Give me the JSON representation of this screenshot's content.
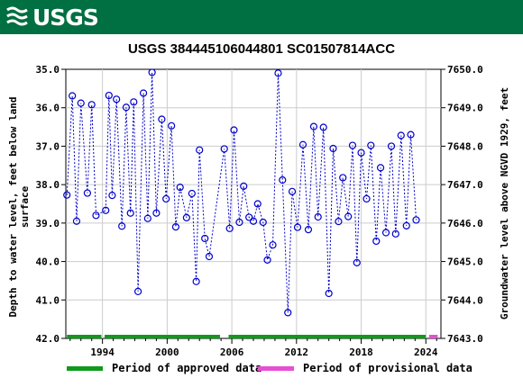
{
  "header": {
    "agency_name": "USGS"
  },
  "chart_data": {
    "type": "line",
    "title": "USGS 384445106044801 SC01507814ACC",
    "ylabel_left_line1": "Depth to water level, feet below land",
    "ylabel_left_line2": "surface",
    "ylabel_right": "Groundwater level above NGVD 1929, feet",
    "xlim": [
      1990.6,
      2025.4
    ],
    "ylim": [
      35.0,
      42.0
    ],
    "y_reversed": true,
    "right_axis_offset": 7685.0,
    "x_ticks": [
      1994,
      2000,
      2006,
      2012,
      2018,
      2024
    ],
    "x_tick_labels": [
      "1994",
      "2000",
      "2006",
      "2012",
      "2018",
      "2024"
    ],
    "y_ticks": [
      35.0,
      36.0,
      37.0,
      38.0,
      39.0,
      40.0,
      41.0,
      42.0
    ],
    "y_tick_labels": [
      "35.0",
      "36.0",
      "37.0",
      "38.0",
      "39.0",
      "40.0",
      "41.0",
      "42.0"
    ],
    "y2_ticks": [
      7650.0,
      7649.0,
      7648.0,
      7647.0,
      7646.0,
      7645.0,
      7644.0,
      7643.0
    ],
    "y2_tick_labels": [
      "7650.0",
      "7649.0",
      "7648.0",
      "7647.0",
      "7646.0",
      "7645.0",
      "7644.0",
      "7643.0"
    ],
    "series": [
      {
        "points": [
          [
            1990.7,
            38.27
          ],
          [
            1991.2,
            35.69
          ],
          [
            1991.6,
            38.95
          ],
          [
            1992.0,
            35.88
          ],
          [
            1992.6,
            38.22
          ],
          [
            1993.0,
            35.92
          ],
          [
            1993.4,
            38.8
          ],
          [
            1994.3,
            38.67
          ],
          [
            1994.6,
            35.68
          ],
          [
            1994.9,
            38.28
          ],
          [
            1995.3,
            35.78
          ],
          [
            1995.8,
            39.08
          ],
          [
            1996.2,
            35.99
          ],
          [
            1996.6,
            38.74
          ],
          [
            1996.9,
            35.85
          ],
          [
            1997.3,
            40.78
          ],
          [
            1997.8,
            35.62
          ],
          [
            1998.2,
            38.88
          ],
          [
            1998.6,
            35.08
          ],
          [
            1999.0,
            38.74
          ],
          [
            1999.5,
            36.3
          ],
          [
            1999.9,
            38.37
          ],
          [
            2000.4,
            36.47
          ],
          [
            2000.8,
            39.1
          ],
          [
            2001.2,
            38.07
          ],
          [
            2001.8,
            38.86
          ],
          [
            2002.3,
            38.23
          ],
          [
            2002.7,
            40.52
          ],
          [
            2003.0,
            37.1
          ],
          [
            2003.5,
            39.4
          ],
          [
            2003.9,
            39.87
          ],
          [
            2005.3,
            37.07
          ],
          [
            2005.8,
            39.14
          ],
          [
            2006.2,
            36.58
          ],
          [
            2006.7,
            38.98
          ],
          [
            2007.1,
            38.04
          ],
          [
            2007.6,
            38.85
          ],
          [
            2008.0,
            38.95
          ],
          [
            2008.4,
            38.5
          ],
          [
            2008.9,
            38.98
          ],
          [
            2009.3,
            39.96
          ],
          [
            2009.8,
            39.57
          ],
          [
            2010.3,
            35.1
          ],
          [
            2010.7,
            37.88
          ],
          [
            2011.2,
            41.33
          ],
          [
            2011.6,
            38.18
          ],
          [
            2012.1,
            39.11
          ],
          [
            2012.6,
            36.96
          ],
          [
            2013.1,
            39.17
          ],
          [
            2013.6,
            36.49
          ],
          [
            2014.0,
            38.84
          ],
          [
            2014.5,
            36.51
          ],
          [
            2015.0,
            40.83
          ],
          [
            2015.4,
            37.06
          ],
          [
            2015.9,
            38.96
          ],
          [
            2016.3,
            37.82
          ],
          [
            2016.8,
            38.83
          ],
          [
            2017.2,
            36.98
          ],
          [
            2017.6,
            40.03
          ],
          [
            2018.0,
            37.17
          ],
          [
            2018.5,
            38.37
          ],
          [
            2018.9,
            36.98
          ],
          [
            2019.4,
            39.47
          ],
          [
            2019.8,
            37.56
          ],
          [
            2020.3,
            39.25
          ],
          [
            2020.8,
            37.0
          ],
          [
            2021.2,
            39.28
          ],
          [
            2021.7,
            36.72
          ],
          [
            2022.2,
            39.07
          ],
          [
            2022.6,
            36.7
          ],
          [
            2023.1,
            38.92
          ]
        ],
        "color": "#0000cc"
      }
    ],
    "approved_periods": [
      [
        1990.7,
        1993.9
      ],
      [
        1994.2,
        2004.9
      ],
      [
        2005.7,
        2024.0
      ]
    ],
    "provisional_periods": [
      [
        2024.3,
        2025.1
      ]
    ],
    "colors": {
      "approved": "#0f9a1b",
      "provisional": "#e64fd4",
      "series": "#0000cc"
    },
    "legend": {
      "approved_label": "Period of approved data",
      "provisional_label": "Period of provisional data"
    }
  }
}
